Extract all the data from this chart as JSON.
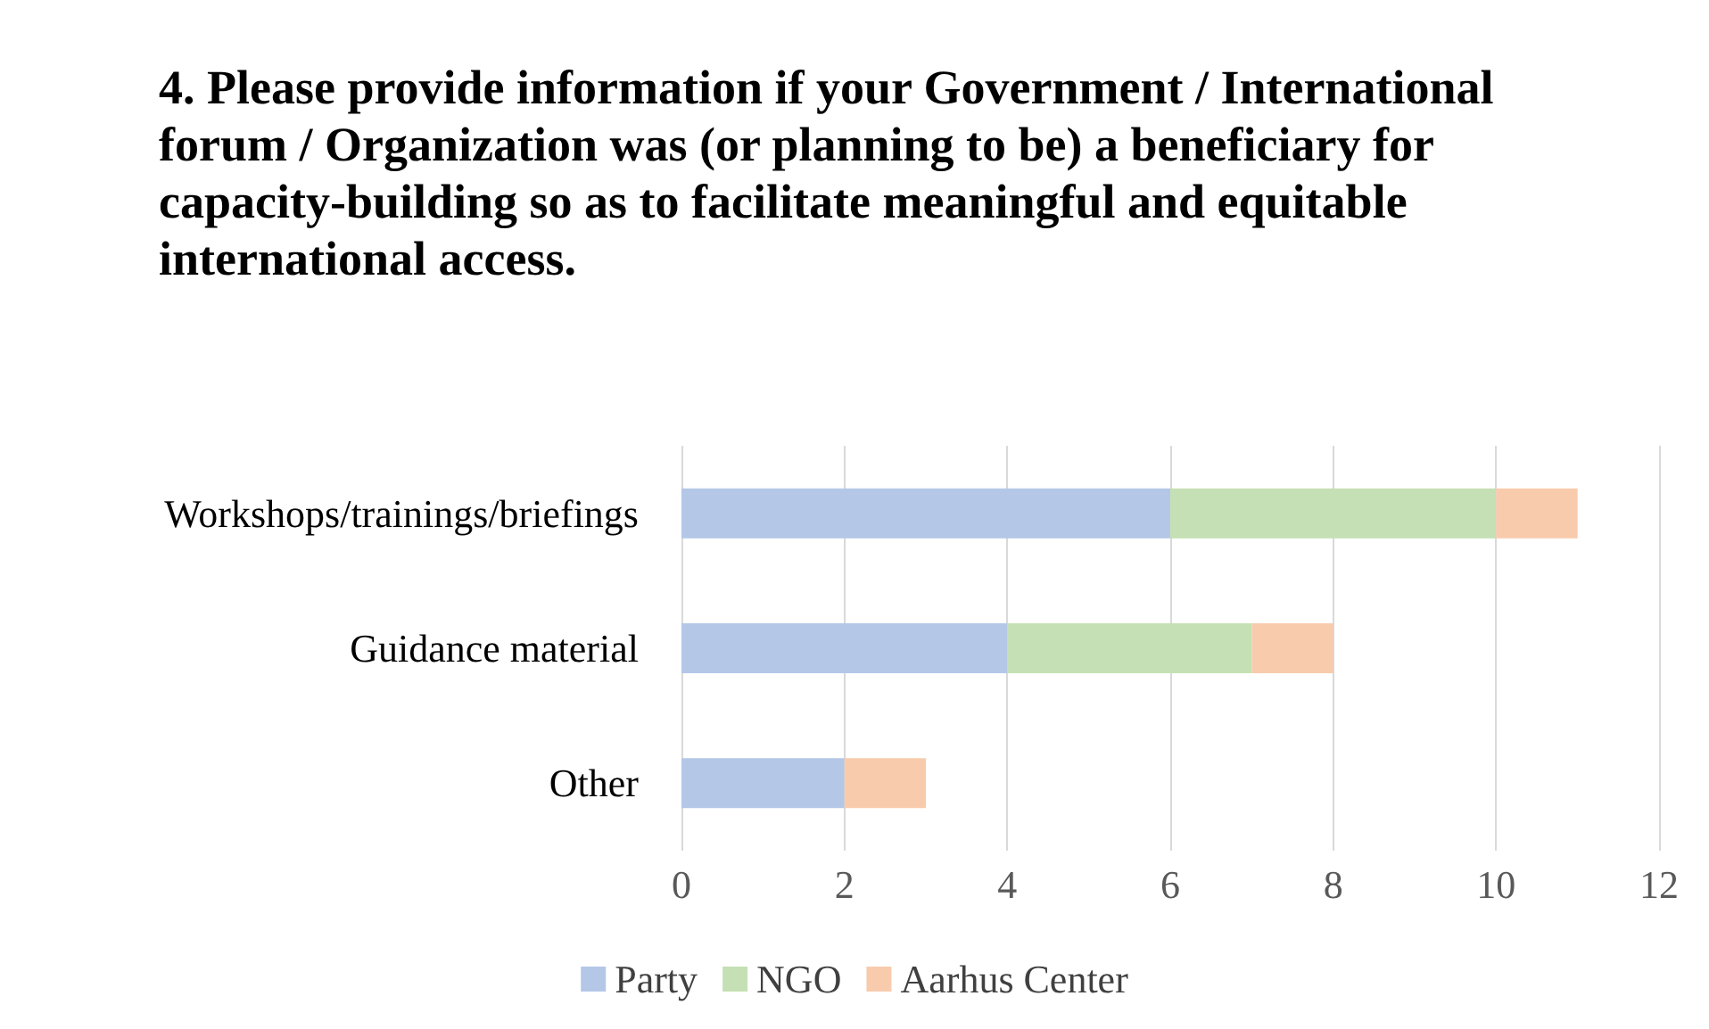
{
  "chart_data": {
    "type": "bar",
    "orientation": "horizontal",
    "stacked": true,
    "title": "4. Please provide information if your Government / International forum / Organization was (or planning to be) a beneficiary for capacity-building so as to facilitate meaningful and equitable international access.",
    "categories": [
      "Workshops/trainings/briefings",
      "Guidance material",
      "Other"
    ],
    "series": [
      {
        "name": "Party",
        "color": "#b4c7e7",
        "values": [
          6,
          4,
          2
        ]
      },
      {
        "name": "NGO",
        "color": "#c5e0b4",
        "values": [
          4,
          3,
          0
        ]
      },
      {
        "name": "Aarhus Center",
        "color": "#f8cbad",
        "values": [
          1,
          1,
          1
        ]
      }
    ],
    "xlim": [
      0,
      12
    ],
    "xticks": [
      0,
      2,
      4,
      6,
      8,
      10,
      12
    ],
    "grid": "x",
    "legend": "bottom"
  }
}
